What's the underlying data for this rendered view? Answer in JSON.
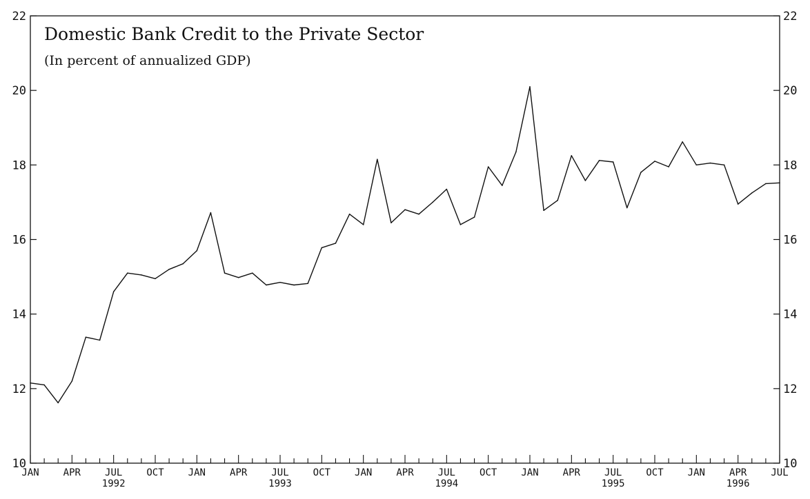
{
  "chart_data": {
    "type": "line",
    "title": "Domestic Bank Credit to the Private Sector",
    "subtitle": "(In percent of annualized GDP)",
    "xlabel": "",
    "ylabel": "",
    "ylim": [
      10,
      22
    ],
    "yticks": [
      10,
      12,
      14,
      16,
      18,
      20,
      22
    ],
    "grid": false,
    "x_start": "1992-01",
    "x_end": "1996-07",
    "x_month_labels": [
      {
        "label": "JAN",
        "month": "1992-01"
      },
      {
        "label": "APR",
        "month": "1992-04"
      },
      {
        "label": "JUL",
        "month": "1992-07"
      },
      {
        "label": "OCT",
        "month": "1992-10"
      },
      {
        "label": "JAN",
        "month": "1993-01"
      },
      {
        "label": "APR",
        "month": "1993-04"
      },
      {
        "label": "JUL",
        "month": "1993-07"
      },
      {
        "label": "OCT",
        "month": "1993-10"
      },
      {
        "label": "JAN",
        "month": "1994-01"
      },
      {
        "label": "APR",
        "month": "1994-04"
      },
      {
        "label": "JUL",
        "month": "1994-07"
      },
      {
        "label": "OCT",
        "month": "1994-10"
      },
      {
        "label": "JAN",
        "month": "1995-01"
      },
      {
        "label": "APR",
        "month": "1995-04"
      },
      {
        "label": "JUL",
        "month": "1995-07"
      },
      {
        "label": "OCT",
        "month": "1995-10"
      },
      {
        "label": "JAN",
        "month": "1996-01"
      },
      {
        "label": "APR",
        "month": "1996-04"
      },
      {
        "label": "JUL",
        "month": "1996-07"
      }
    ],
    "x_year_labels": [
      {
        "label": "1992",
        "month": "1992-07"
      },
      {
        "label": "1993",
        "month": "1993-07"
      },
      {
        "label": "1994",
        "month": "1994-07"
      },
      {
        "label": "1995",
        "month": "1995-07"
      },
      {
        "label": "1996",
        "month": "1996-04"
      }
    ],
    "series": [
      {
        "x": [
          "1992-01",
          "1992-02",
          "1992-03",
          "1992-04",
          "1992-05",
          "1992-06",
          "1992-07",
          "1992-08",
          "1992-09",
          "1992-10",
          "1992-11",
          "1992-12",
          "1993-01",
          "1993-02",
          "1993-03",
          "1993-04",
          "1993-05",
          "1993-06",
          "1993-07",
          "1993-08",
          "1993-09",
          "1993-10",
          "1993-11",
          "1993-12",
          "1994-01",
          "1994-02",
          "1994-03",
          "1994-04",
          "1994-05",
          "1994-06",
          "1994-07",
          "1994-08",
          "1994-09",
          "1994-10",
          "1994-11",
          "1994-12",
          "1995-01",
          "1995-02",
          "1995-03",
          "1995-04",
          "1995-05",
          "1995-06",
          "1995-07",
          "1995-08",
          "1995-09",
          "1995-10",
          "1995-11",
          "1995-12",
          "1996-01",
          "1996-02",
          "1996-03",
          "1996-04",
          "1996-05",
          "1996-06",
          "1996-07"
        ],
        "values": [
          12.15,
          12.1,
          11.62,
          12.2,
          13.38,
          13.3,
          14.6,
          15.1,
          15.05,
          14.95,
          15.2,
          15.35,
          15.7,
          16.72,
          15.1,
          14.98,
          15.1,
          14.78,
          14.85,
          14.78,
          14.82,
          15.78,
          15.9,
          16.68,
          16.4,
          18.15,
          16.45,
          16.8,
          16.68,
          17.0,
          17.35,
          16.4,
          16.6,
          17.95,
          17.45,
          18.35,
          20.1,
          16.78,
          17.05,
          18.25,
          17.58,
          18.12,
          18.08,
          16.85,
          17.8,
          18.1,
          17.95,
          18.62,
          18.0,
          18.05,
          18.0,
          16.95,
          17.25,
          17.5,
          17.52
        ]
      }
    ],
    "line_color": "#111111"
  }
}
